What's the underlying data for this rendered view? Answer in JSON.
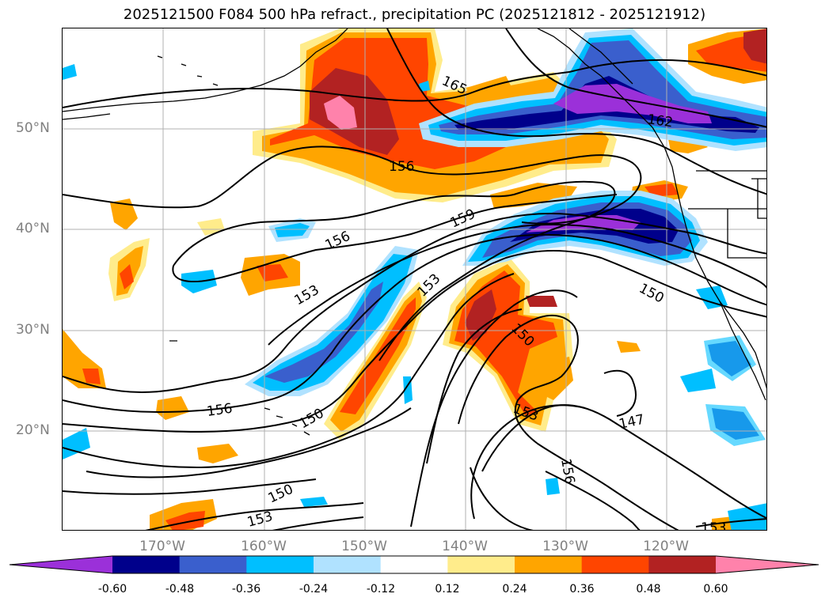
{
  "title": "2025121500 F084 500 hPa refract., precipitation PC (2025121812 - 2025121912)",
  "lat_labels": [
    "50°N",
    "40°N",
    "30°N",
    "20°N"
  ],
  "lon_labels": [
    "170°W",
    "160°W",
    "150°W",
    "140°W",
    "130°W",
    "120°W"
  ],
  "contour_labels": [
    "165",
    "162",
    "156",
    "156",
    "159",
    "153",
    "153",
    "150",
    "150",
    "156",
    "150",
    "153",
    "147",
    "156",
    "150",
    "153",
    "153"
  ],
  "colorbar": {
    "ticks": [
      "-0.60",
      "-0.48",
      "-0.36",
      "-0.24",
      "-0.12",
      "0.12",
      "0.24",
      "0.36",
      "0.48",
      "0.60"
    ],
    "colors": [
      "#9b30d9",
      "#00008b",
      "#3a5fcd",
      "#00bfff",
      "#b0e2ff",
      "#ffffff",
      "#ffec8b",
      "#ffa500",
      "#ff4500",
      "#b22222",
      "#ff82ab"
    ]
  },
  "colors": {
    "neg_strong": "#9b30d9",
    "neg_navy": "#00008b",
    "neg_blue": "#3a5fcd",
    "neg_sky": "#00bfff",
    "neg_light": "#b0e2ff",
    "pos_light": "#ffec8b",
    "pos_orange": "#ffa500",
    "pos_red": "#ff4500",
    "pos_dark": "#b22222",
    "pos_pink": "#ff82ab",
    "grid": "#b0b0b0",
    "coast": "#000000",
    "contour": "#000000"
  }
}
